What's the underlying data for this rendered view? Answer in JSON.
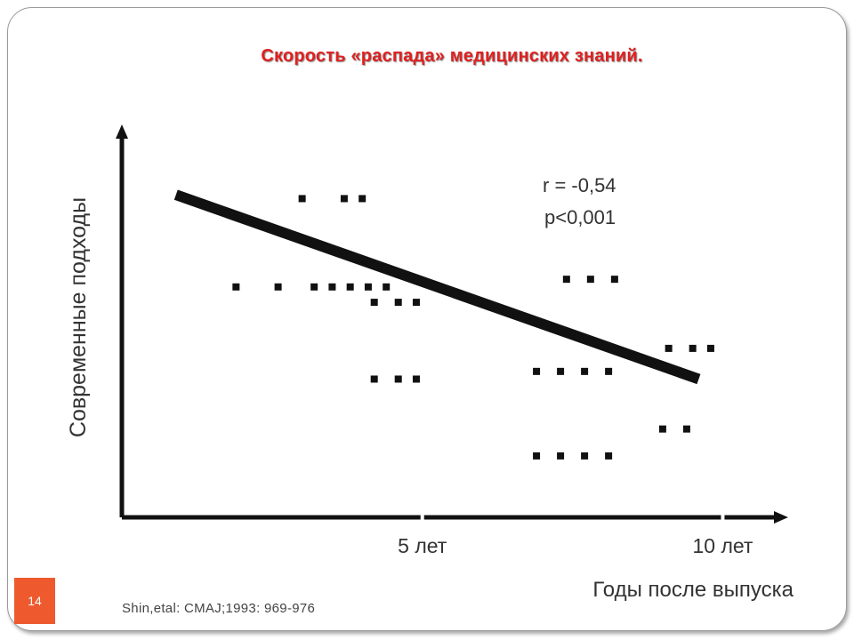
{
  "slide": {
    "title": "Скорость «распада» медицинских знаний.",
    "page_number": "14",
    "citation": "Shin,etal: CMAJ;1993: 969-976"
  },
  "chart_data": {
    "type": "scatter",
    "title": "Скорость «распада» медицинских знаний.",
    "xlabel": "Годы после выпуска",
    "ylabel": "Современные подходы",
    "x_ticks": [
      {
        "value": 5,
        "label": "5 лет"
      },
      {
        "value": 10,
        "label": "10 лет"
      }
    ],
    "xlim": [
      0,
      11
    ],
    "ylim": [
      0,
      10
    ],
    "annotations": [
      "r = -0,54",
      "p<0,001"
    ],
    "grid": false,
    "trend_line": {
      "from": [
        0.9,
        8.4
      ],
      "to": [
        9.6,
        3.6
      ]
    },
    "points": [
      [
        3.0,
        8.3
      ],
      [
        3.7,
        8.3
      ],
      [
        4.0,
        8.3
      ],
      [
        1.9,
        6.0
      ],
      [
        2.6,
        6.0
      ],
      [
        3.2,
        6.0
      ],
      [
        3.5,
        6.0
      ],
      [
        3.8,
        6.0
      ],
      [
        4.1,
        6.0
      ],
      [
        4.4,
        6.0
      ],
      [
        4.2,
        5.6
      ],
      [
        4.6,
        5.6
      ],
      [
        4.9,
        5.6
      ],
      [
        4.2,
        3.6
      ],
      [
        4.6,
        3.6
      ],
      [
        4.9,
        3.6
      ],
      [
        7.4,
        6.2
      ],
      [
        7.8,
        6.2
      ],
      [
        8.2,
        6.2
      ],
      [
        9.1,
        4.4
      ],
      [
        9.5,
        4.4
      ],
      [
        9.8,
        4.4
      ],
      [
        6.9,
        3.8
      ],
      [
        7.3,
        3.8
      ],
      [
        7.7,
        3.8
      ],
      [
        8.1,
        3.8
      ],
      [
        9.0,
        2.3
      ],
      [
        9.4,
        2.3
      ],
      [
        6.9,
        1.6
      ],
      [
        7.3,
        1.6
      ],
      [
        7.7,
        1.6
      ],
      [
        8.1,
        1.6
      ]
    ]
  }
}
